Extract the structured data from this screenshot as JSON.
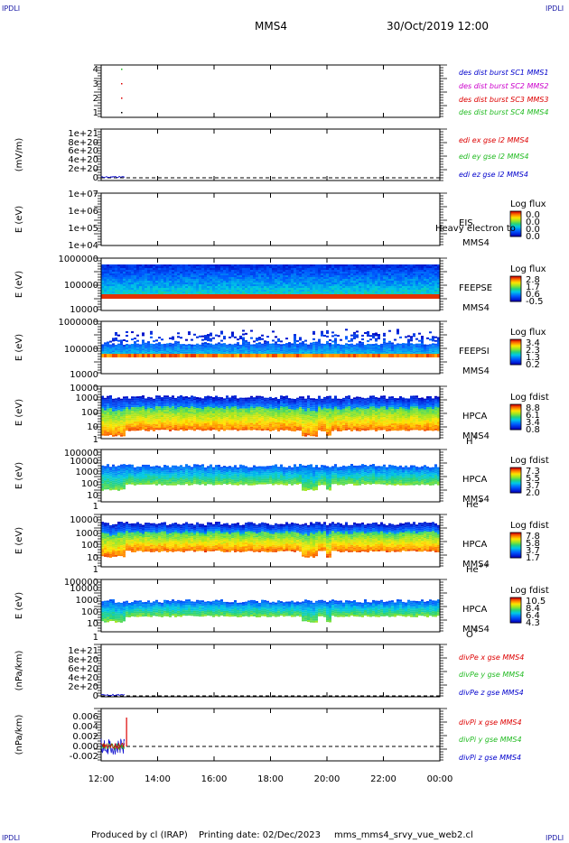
{
  "corners": {
    "tl": "IPDLI",
    "tr": "IPDLI",
    "bl": "IPDLI",
    "br": "IPDLI"
  },
  "header": {
    "spacecraft": "MMS4",
    "datetime": "30/Oct/2019 12:00"
  },
  "footer": {
    "produced": "Produced by cl (IRAP)",
    "printing": "Printing date: 02/Dec/2023",
    "file": "mms_mms4_srvy_vue_web2.cl"
  },
  "chart_data": {
    "type": "line",
    "x_axis": {
      "ticks": [
        "12:00",
        "14:00",
        "16:00",
        "18:00",
        "20:00",
        "22:00",
        "00:00"
      ],
      "range_hours": [
        12,
        24
      ]
    },
    "panels": [
      {
        "id": "burst",
        "type": "scatter",
        "ylabel": "",
        "yticks": [
          "1",
          "2",
          "3",
          "4"
        ],
        "legend": [
          {
            "text": "des dist burst SC1 MMS1",
            "color": "#0000cc"
          },
          {
            "text": "des dist burst SC2 MMS2",
            "color": "#cc00cc"
          },
          {
            "text": "des dist burst SC3 MMS3",
            "color": "#dd0000"
          },
          {
            "text": "des dist burst SC4 MMS4",
            "color": "#22bb22"
          }
        ],
        "points": [
          {
            "t": 12.72,
            "sc": 1
          },
          {
            "t": 12.72,
            "sc": 2
          },
          {
            "t": 12.72,
            "sc": 3
          },
          {
            "t": 12.72,
            "sc": 4
          }
        ]
      },
      {
        "id": "edi",
        "type": "line",
        "ylabel": "(mV/m)",
        "yticks": [
          "0",
          "2e+20",
          "4e+20",
          "6e+20",
          "8e+20",
          "1e+21"
        ],
        "legend": [
          {
            "text": "edi ex gse l2 MMS4",
            "color": "#dd0000"
          },
          {
            "text": "edi ey gse l2 MMS4",
            "color": "#22bb22"
          },
          {
            "text": "edi ez gse l2 MMS4",
            "color": "#0000cc"
          }
        ]
      },
      {
        "id": "eis",
        "type": "heatmap",
        "ylabel": "E (eV)",
        "yticks": [
          "1e+04",
          "1e+05",
          "1e+06",
          "1e+07"
        ],
        "instrument": [
          "EIS",
          "MMS4"
        ],
        "overlay": "Heavy electron to",
        "cbtitle": "Log flux",
        "cbticks": [
          "0.0",
          "0.0",
          "0.0",
          "0.0"
        ]
      },
      {
        "id": "feepse",
        "type": "heatmap",
        "ylabel": "E (eV)",
        "yticks": [
          "10000",
          "100000",
          "1000000"
        ],
        "instrument": [
          "FEEPSE",
          "MMS4"
        ],
        "cbtitle": "Log flux",
        "cbticks": [
          "2.8",
          "1.7",
          "0.6",
          "-0.5"
        ]
      },
      {
        "id": "feepsi",
        "type": "heatmap",
        "ylabel": "E (eV)",
        "yticks": [
          "10000",
          "100000",
          "1000000"
        ],
        "instrument": [
          "FEEPSI",
          "MMS4"
        ],
        "cbtitle": "Log flux",
        "cbticks": [
          "3.4",
          "2.3",
          "1.3",
          "0.2"
        ]
      },
      {
        "id": "hpca_h",
        "type": "heatmap",
        "ylabel": "E (eV)",
        "yticks": [
          "1",
          "10",
          "100",
          "1000",
          "10000"
        ],
        "instrument": [
          "HPCA",
          "MMS4"
        ],
        "species": "H",
        "charge": "+",
        "cbtitle": "Log fdist",
        "cbticks": [
          "8.8",
          "6.1",
          "3.4",
          "0.8"
        ]
      },
      {
        "id": "hpca_he",
        "type": "heatmap",
        "ylabel": "E (eV)",
        "yticks": [
          "1",
          "10",
          "100",
          "1000",
          "10000",
          "100000"
        ],
        "instrument": [
          "HPCA",
          "MMS4"
        ],
        "species": "He",
        "charge": "+",
        "cbtitle": "Log fdist",
        "cbticks": [
          "7.3",
          "5.5",
          "3.7",
          "2.0"
        ]
      },
      {
        "id": "hpca_hepp",
        "type": "heatmap",
        "ylabel": "E (eV)",
        "yticks": [
          "1",
          "10",
          "100",
          "1000",
          "10000"
        ],
        "instrument": [
          "HPCA",
          "MMS4"
        ],
        "species": "He",
        "charge": "++",
        "cbtitle": "Log fdist",
        "cbticks": [
          "7.8",
          "5.8",
          "3.7",
          "1.7"
        ]
      },
      {
        "id": "hpca_o",
        "type": "heatmap",
        "ylabel": "E (eV)",
        "yticks": [
          "1",
          "10",
          "100",
          "1000",
          "10000",
          "100000"
        ],
        "instrument": [
          "HPCA",
          "MMS4"
        ],
        "species": "O",
        "charge": "+",
        "cbtitle": "Log fdist",
        "cbticks": [
          "10.5",
          "8.4",
          "6.4",
          "4.3"
        ]
      },
      {
        "id": "divpe",
        "type": "line",
        "ylabel": "(nPa/km)",
        "yticks": [
          "0",
          "2e+20",
          "4e+20",
          "6e+20",
          "8e+20",
          "1e+21"
        ],
        "legend": [
          {
            "text": "divPe x gse MMS4",
            "color": "#dd0000"
          },
          {
            "text": "divPe y gse MMS4",
            "color": "#22bb22"
          },
          {
            "text": "divPe z gse MMS4",
            "color": "#0000cc"
          }
        ]
      },
      {
        "id": "divpi",
        "type": "line",
        "ylabel": "(nPa/km)",
        "yticks": [
          "-0.002",
          "0.000",
          "0.002",
          "0.004",
          "0.006"
        ],
        "legend": [
          {
            "text": "divPi x gse MMS4",
            "color": "#dd0000"
          },
          {
            "text": "divPi y gse MMS4",
            "color": "#22bb22"
          },
          {
            "text": "divPi z gse MMS4",
            "color": "#0000cc"
          }
        ]
      }
    ]
  }
}
